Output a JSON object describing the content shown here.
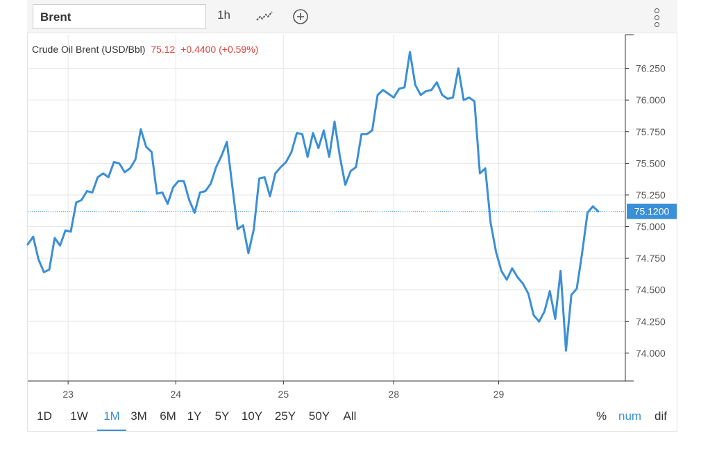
{
  "toolbar": {
    "symbol": "Brent",
    "interval": "1h"
  },
  "legend": {
    "name": "Crude Oil Brent (USD/Bbl)",
    "last": "75.12",
    "change": "+0.4400 (+0.59%)"
  },
  "colors": {
    "line": "#3a8fd6",
    "negative": "#e0413b",
    "grid": "#e6e6e6",
    "price_tag": "#3a8fd6"
  },
  "ranges": [
    "1D",
    "1W",
    "1M",
    "3M",
    "6M",
    "1Y",
    "5Y",
    "10Y",
    "25Y",
    "50Y",
    "All"
  ],
  "active_range": "1M",
  "modes": [
    "%",
    "num",
    "dif"
  ],
  "active_mode": "num",
  "chart_data": {
    "type": "line",
    "title": "Crude Oil Brent (USD/Bbl)",
    "ylim": [
      73.78,
      76.5
    ],
    "yticks": [
      "76.250",
      "76.000",
      "75.750",
      "75.500",
      "75.250",
      "75.000",
      "74.750",
      "74.500",
      "74.250",
      "74.000"
    ],
    "ytick_values": [
      76.25,
      76.0,
      75.75,
      75.5,
      75.25,
      75.0,
      74.75,
      74.5,
      74.25,
      74.0
    ],
    "xlabels": [
      "23",
      "24",
      "25",
      "28",
      "29"
    ],
    "xlabel_index": [
      7.5,
      27.5,
      47.5,
      68,
      87.5
    ],
    "grid": true,
    "last_value": 75.12,
    "last_label": "75.1200",
    "series": [
      {
        "values": [
          74.86,
          74.92,
          74.74,
          74.64,
          74.66,
          74.91,
          74.85,
          74.97,
          74.96,
          75.19,
          75.21,
          75.28,
          75.27,
          75.39,
          75.42,
          75.39,
          75.51,
          75.5,
          75.43,
          75.46,
          75.53,
          75.77,
          75.63,
          75.59,
          75.26,
          75.27,
          75.18,
          75.31,
          75.36,
          75.36,
          75.21,
          75.11,
          75.27,
          75.28,
          75.34,
          75.47,
          75.56,
          75.67,
          75.32,
          74.98,
          75.01,
          74.79,
          74.98,
          75.38,
          75.39,
          75.24,
          75.42,
          75.47,
          75.51,
          75.59,
          75.74,
          75.73,
          75.55,
          75.74,
          75.62,
          75.76,
          75.55,
          75.83,
          75.55,
          75.33,
          75.44,
          75.47,
          75.73,
          75.73,
          75.76,
          76.04,
          76.08,
          76.05,
          76.02,
          76.09,
          76.1,
          76.38,
          76.12,
          76.04,
          76.07,
          76.08,
          76.14,
          76.04,
          76.01,
          76.02,
          76.25,
          76.0,
          76.02,
          75.99,
          75.42,
          75.46,
          75.03,
          74.8,
          74.65,
          74.58,
          74.67,
          74.6,
          74.55,
          74.47,
          74.3,
          74.25,
          74.33,
          74.49,
          74.27,
          74.65,
          74.02,
          74.46,
          74.51,
          74.79,
          75.11,
          75.16,
          75.12
        ]
      }
    ]
  }
}
